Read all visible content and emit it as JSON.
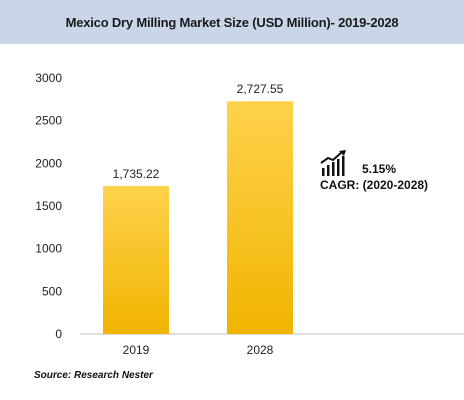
{
  "chart_data": {
    "type": "bar",
    "title": "Mexico Dry Milling Market Size (USD Million)- 2019-2028",
    "categories": [
      "2019",
      "2028"
    ],
    "values": [
      1735.22,
      2727.55
    ],
    "value_labels": [
      "1,735.22",
      "2,727.55"
    ],
    "xlabel": "",
    "ylabel": "",
    "ylim": [
      0,
      3000
    ],
    "yticks": [
      0,
      500,
      1000,
      1500,
      2000,
      2500,
      3000
    ],
    "grid": false,
    "legend": "none",
    "bar_color_top": "#ffd24d",
    "bar_color_bottom": "#f0b400",
    "title_bar_color": "#c9d6ea"
  },
  "annotation": {
    "icon": "growth-chart-icon",
    "rate": "5.15%",
    "label": "CAGR: (2020-2028)"
  },
  "source": "Source: Research Nester"
}
